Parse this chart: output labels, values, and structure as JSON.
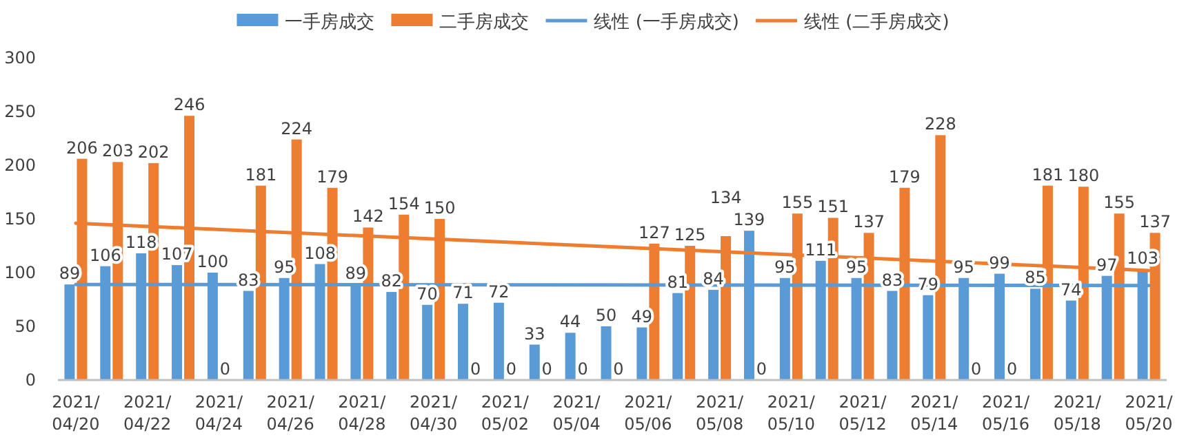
{
  "chart_data": {
    "type": "bar",
    "categories": [
      "2021/04/20",
      null,
      "2021/04/22",
      null,
      "2021/04/24",
      null,
      "2021/04/26",
      null,
      "2021/04/28",
      null,
      "2021/04/30",
      null,
      "2021/05/02",
      null,
      "2021/05/04",
      null,
      "2021/05/06",
      null,
      "2021/05/08",
      null,
      "2021/05/10",
      null,
      "2021/05/12",
      null,
      "2021/05/14",
      null,
      "2021/05/16",
      null,
      "2021/05/18",
      null,
      "2021/05/20"
    ],
    "series": [
      {
        "name": "一手房成交",
        "color": "#5b9bd5",
        "values": [
          89,
          106,
          118,
          107,
          100,
          83,
          95,
          108,
          89,
          82,
          70,
          71,
          72,
          33,
          44,
          50,
          49,
          81,
          84,
          139,
          95,
          111,
          95,
          83,
          79,
          95,
          99,
          85,
          74,
          97,
          103
        ],
        "value_labels": [
          "89",
          "106",
          "118",
          "107",
          "100",
          "83",
          "95",
          "108",
          "89",
          "82",
          "70",
          "71",
          "72",
          "33",
          "44",
          "50",
          "49",
          "81",
          "84",
          "139",
          "95",
          "111",
          "95",
          "83",
          "79",
          "95",
          "99",
          "85",
          "74",
          "97",
          "103"
        ]
      },
      {
        "name": "二手房成交",
        "color": "#ed7d31",
        "values": [
          206,
          203,
          202,
          246,
          0,
          181,
          224,
          179,
          142,
          154,
          150,
          0,
          0,
          0,
          0,
          0,
          127,
          125,
          134,
          0,
          155,
          151,
          137,
          179,
          228,
          0,
          0,
          181,
          180,
          155,
          137
        ],
        "value_labels": [
          "206",
          "203",
          "202",
          "246",
          "0",
          "181",
          "224",
          "179",
          "142",
          "154",
          "150",
          "0",
          "0",
          "0",
          "0",
          "0",
          "127",
          "125",
          "134",
          "0",
          "155",
          "151",
          "137",
          "179",
          "228",
          "0",
          "0",
          "181",
          "180",
          "155",
          "137"
        ]
      },
      {
        "name": "线性 (一手房成交)",
        "type": "line",
        "color": "#5b9bd5",
        "x": [
          "2021/04/20",
          "2021/05/20"
        ],
        "values": [
          89,
          88
        ]
      },
      {
        "name": "线性 (二手房成交)",
        "type": "line",
        "color": "#ed7d31",
        "x": [
          "2021/04/20",
          "2021/05/20"
        ],
        "values": [
          146,
          102
        ]
      }
    ],
    "ylim": [
      0,
      300
    ],
    "yticks": [
      0,
      50,
      100,
      150,
      200,
      250,
      300
    ],
    "legend": "top",
    "grid": false
  }
}
